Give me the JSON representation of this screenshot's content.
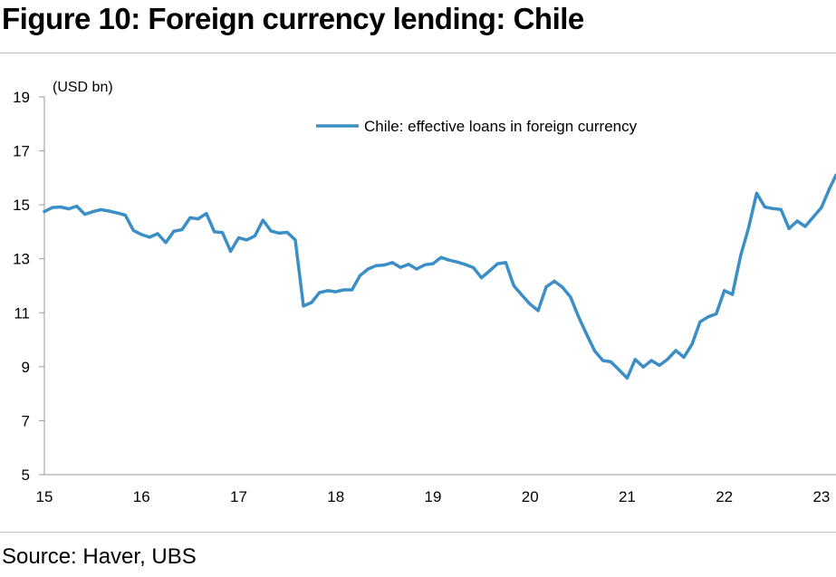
{
  "title": "Figure 10: Foreign currency lending: Chile",
  "source": "Source: Haver, UBS",
  "chart_data": {
    "type": "line",
    "ylabel": "(USD bn)",
    "ylim": [
      5,
      19
    ],
    "y_ticks": [
      "5",
      "7",
      "9",
      "11",
      "13",
      "15",
      "17",
      "19"
    ],
    "xlim": [
      2015,
      2023.15
    ],
    "x_ticks": [
      "15",
      "16",
      "17",
      "18",
      "19",
      "20",
      "21",
      "22",
      "23"
    ],
    "grid": false,
    "legend_position": "top-center",
    "line_color": "#3b8fc6",
    "series": [
      {
        "name": "Chile: effective loans in foreign currency",
        "x": [
          2015.0,
          2015.083,
          2015.167,
          2015.25,
          2015.333,
          2015.417,
          2015.5,
          2015.583,
          2015.667,
          2015.75,
          2015.833,
          2015.917,
          2016.0,
          2016.083,
          2016.167,
          2016.25,
          2016.333,
          2016.417,
          2016.5,
          2016.583,
          2016.667,
          2016.75,
          2016.833,
          2016.917,
          2017.0,
          2017.083,
          2017.167,
          2017.25,
          2017.333,
          2017.417,
          2017.5,
          2017.583,
          2017.667,
          2017.75,
          2017.833,
          2017.917,
          2018.0,
          2018.083,
          2018.167,
          2018.25,
          2018.333,
          2018.417,
          2018.5,
          2018.583,
          2018.667,
          2018.75,
          2018.833,
          2018.917,
          2019.0,
          2019.083,
          2019.167,
          2019.25,
          2019.333,
          2019.417,
          2019.5,
          2019.583,
          2019.667,
          2019.75,
          2019.833,
          2019.917,
          2020.0,
          2020.083,
          2020.167,
          2020.25,
          2020.333,
          2020.417,
          2020.5,
          2020.583,
          2020.667,
          2020.75,
          2020.833,
          2020.917,
          2021.0,
          2021.083,
          2021.167,
          2021.25,
          2021.333,
          2021.417,
          2021.5,
          2021.583,
          2021.667,
          2021.75,
          2021.833,
          2021.917,
          2022.0,
          2022.083,
          2022.167,
          2022.25,
          2022.333,
          2022.417,
          2022.5,
          2022.583,
          2022.667,
          2022.75,
          2022.833,
          2022.917,
          2023.0,
          2023.083,
          2023.15
        ],
        "y": [
          14.75,
          14.9,
          14.92,
          14.85,
          14.95,
          14.65,
          14.75,
          14.82,
          14.77,
          14.7,
          14.62,
          14.05,
          13.9,
          13.8,
          13.93,
          13.6,
          14.02,
          14.08,
          14.52,
          14.48,
          14.68,
          14.0,
          13.97,
          13.28,
          13.78,
          13.7,
          13.85,
          14.43,
          14.03,
          13.95,
          13.98,
          13.7,
          11.25,
          11.38,
          11.75,
          11.82,
          11.78,
          11.85,
          11.85,
          12.38,
          12.62,
          12.75,
          12.77,
          12.86,
          12.68,
          12.8,
          12.62,
          12.78,
          12.82,
          13.05,
          12.95,
          12.88,
          12.79,
          12.67,
          12.3,
          12.55,
          12.82,
          12.86,
          12.0,
          11.65,
          11.32,
          11.08,
          11.96,
          12.17,
          11.95,
          11.58,
          10.85,
          10.2,
          9.58,
          9.23,
          9.18,
          8.88,
          8.58,
          9.27,
          8.99,
          9.23,
          9.05,
          9.28,
          9.6,
          9.35,
          9.83,
          10.66,
          10.85,
          10.96,
          11.82,
          11.68,
          13.1,
          14.15,
          15.43,
          14.92,
          14.86,
          14.83,
          14.12,
          14.4,
          14.2,
          14.55,
          14.9,
          15.6,
          16.1
        ]
      }
    ]
  }
}
